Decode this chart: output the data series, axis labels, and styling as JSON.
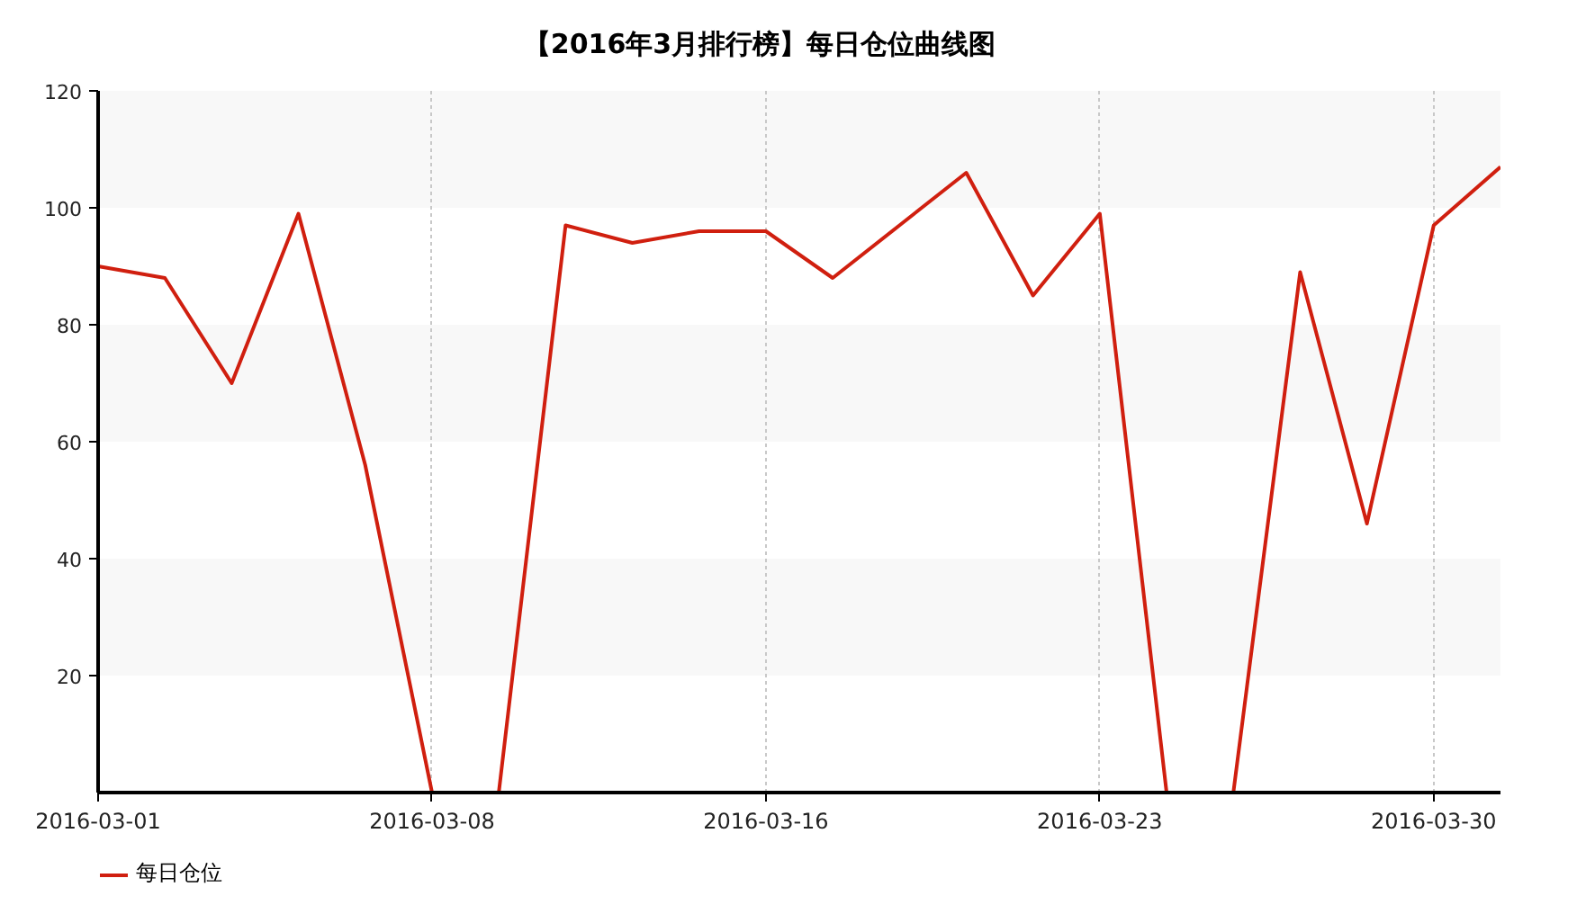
{
  "chart_data": {
    "type": "line",
    "title": "【2016年3月排行榜】每日仓位曲线图",
    "categories": [
      "2016-03-01",
      null,
      null,
      null,
      null,
      "2016-03-08",
      null,
      null,
      null,
      null,
      "2016-03-16",
      null,
      null,
      null,
      null,
      "2016-03-23",
      null,
      null,
      null,
      null,
      "2016-03-30",
      null
    ],
    "series": [
      {
        "name": "每日仓位",
        "color": "#d01f0f",
        "values": [
          90,
          88,
          70,
          99,
          56,
          0,
          0,
          97,
          94,
          96,
          96,
          88,
          97,
          106,
          85,
          99,
          0,
          0,
          89,
          46,
          97,
          107
        ]
      }
    ],
    "ylim": [
      0,
      120
    ],
    "yticks": [
      20,
      40,
      60,
      80,
      100,
      120
    ],
    "grid": "x",
    "legend": "bottom left",
    "bands": [
      {
        "axis": "y",
        "from": 20,
        "to": 40,
        "color": "#f8f8f8"
      },
      {
        "axis": "y",
        "from": 60,
        "to": 80,
        "color": "#f8f8f8"
      },
      {
        "axis": "y",
        "from": 100,
        "to": 120,
        "color": "#f8f8f8"
      }
    ]
  }
}
